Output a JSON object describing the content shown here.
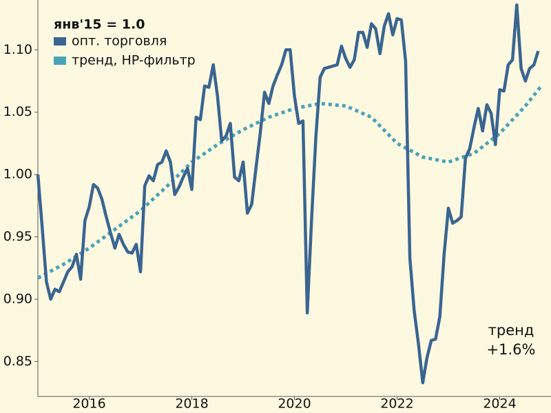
{
  "chart_data": {
    "type": "line",
    "legend_title": "янв'15 = 1.0",
    "legend": "upper left",
    "xlim": [
      2015,
      2025
    ],
    "xticks": [
      2016,
      2018,
      2020,
      2022,
      2024
    ],
    "ylim": [
      0.822,
      1.14
    ],
    "yticks": [
      0.85,
      {
        "value": 0.9,
        "label": "0.90"
      },
      0.95,
      {
        "value": 1,
        "label": "1.00"
      },
      1.05,
      {
        "value": 1.1,
        "label": "1.10"
      }
    ],
    "series": [
      {
        "name": "опт. торговля",
        "color": "#3a6590",
        "style": "solid",
        "x": [
          2015,
          2015.083,
          2015.167,
          2015.25,
          2015.333,
          2015.417,
          2015.5,
          2015.583,
          2015.667,
          2015.75,
          2015.833,
          2015.917,
          2016,
          2016.083,
          2016.167,
          2016.25,
          2016.333,
          2016.417,
          2016.5,
          2016.583,
          2016.667,
          2016.75,
          2016.833,
          2016.917,
          2017,
          2017.083,
          2017.167,
          2017.25,
          2017.333,
          2017.417,
          2017.5,
          2017.583,
          2017.667,
          2017.75,
          2017.833,
          2017.917,
          2018,
          2018.083,
          2018.167,
          2018.25,
          2018.333,
          2018.417,
          2018.5,
          2018.583,
          2018.667,
          2018.75,
          2018.833,
          2018.917,
          2019,
          2019.083,
          2019.167,
          2019.25,
          2019.333,
          2019.417,
          2019.5,
          2019.583,
          2019.667,
          2019.75,
          2019.833,
          2019.917,
          2020,
          2020.083,
          2020.167,
          2020.25,
          2020.333,
          2020.417,
          2020.5,
          2020.583,
          2020.667,
          2020.75,
          2020.833,
          2020.917,
          2021,
          2021.083,
          2021.167,
          2021.25,
          2021.333,
          2021.417,
          2021.5,
          2021.583,
          2021.667,
          2021.75,
          2021.833,
          2021.917,
          2022,
          2022.083,
          2022.167,
          2022.25,
          2022.333,
          2022.417,
          2022.5,
          2022.583,
          2022.667,
          2022.75,
          2022.833,
          2022.917,
          2023,
          2023.083,
          2023.167,
          2023.25,
          2023.333,
          2023.417,
          2023.5,
          2023.583,
          2023.667,
          2023.75,
          2023.833,
          2023.917,
          2024,
          2024.083,
          2024.167,
          2024.25,
          2024.333,
          2024.417,
          2024.5,
          2024.583,
          2024.667,
          2024.75
        ],
        "values": [
          1.0,
          0.958,
          0.914,
          0.9,
          0.908,
          0.906,
          0.914,
          0.922,
          0.926,
          0.936,
          0.916,
          0.963,
          0.974,
          0.992,
          0.989,
          0.98,
          0.966,
          0.953,
          0.941,
          0.952,
          0.944,
          0.938,
          0.937,
          0.944,
          0.922,
          0.991,
          0.999,
          0.995,
          1.008,
          1.01,
          1.019,
          1.01,
          0.984,
          0.99,
          0.998,
          1.005,
          0.988,
          1.046,
          1.044,
          1.071,
          1.07,
          1.088,
          1.063,
          1.027,
          1.031,
          1.041,
          0.998,
          0.995,
          1.01,
          0.969,
          0.976,
          1.005,
          1.033,
          1.066,
          1.057,
          1.071,
          1.08,
          1.088,
          1.1,
          1.1,
          1.063,
          1.041,
          1.043,
          0.889,
          0.963,
          1.03,
          1.078,
          1.085,
          1.086,
          1.087,
          1.088,
          1.103,
          1.093,
          1.086,
          1.092,
          1.114,
          1.114,
          1.102,
          1.121,
          1.117,
          1.097,
          1.119,
          1.129,
          1.112,
          1.125,
          1.124,
          1.091,
          0.933,
          0.891,
          0.864,
          0.833,
          0.853,
          0.867,
          0.868,
          0.886,
          0.936,
          0.973,
          0.961,
          0.963,
          0.966,
          1.013,
          1.021,
          1.038,
          1.053,
          1.035,
          1.056,
          1.049,
          1.024,
          1.068,
          1.067,
          1.088,
          1.092,
          1.136,
          1.085,
          1.075,
          1.085,
          1.088,
          1.099
        ]
      },
      {
        "name": "тренд, HP-фильтр",
        "color": "#4aa3b8",
        "style": "dotted",
        "x": [
          2015,
          2015.5,
          2016,
          2016.5,
          2017,
          2017.5,
          2018,
          2018.5,
          2019,
          2019.5,
          2020,
          2020.5,
          2021,
          2021.5,
          2022,
          2022.5,
          2023,
          2023.5,
          2024,
          2024.5,
          2024.83
        ],
        "values": [
          0.917,
          0.928,
          0.941,
          0.956,
          0.971,
          0.99,
          1.01,
          1.024,
          1.036,
          1.046,
          1.053,
          1.057,
          1.055,
          1.046,
          1.025,
          1.014,
          1.01,
          1.017,
          1.033,
          1.055,
          1.072
        ]
      }
    ],
    "annotation": {
      "lines": [
        "тренд",
        "+1.6%"
      ],
      "color": "#4aa3b8"
    }
  }
}
